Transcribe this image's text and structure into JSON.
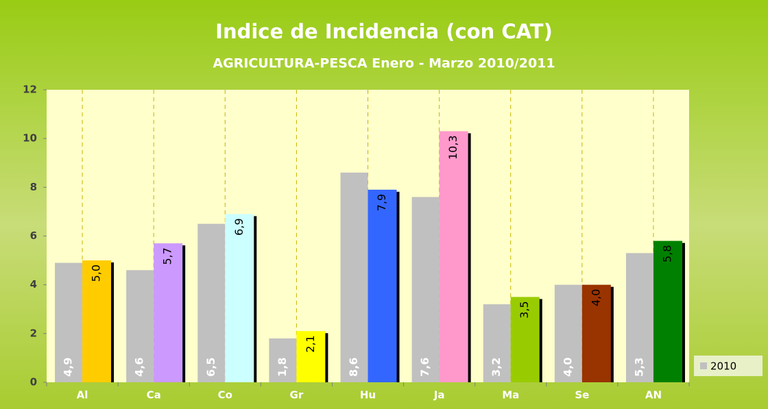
{
  "chart_data": {
    "type": "bar",
    "title": "Indice de Incidencia (con CAT)",
    "subtitle": "AGRICULTURA-PESCA Enero - Marzo 2010/2011",
    "categories": [
      "Al",
      "Ca",
      "Co",
      "Gr",
      "Hu",
      "Ja",
      "Ma",
      "Se",
      "AN"
    ],
    "series": [
      {
        "name": "2010",
        "color": "#c0c0c0",
        "values": [
          4.9,
          4.6,
          6.5,
          1.8,
          8.6,
          7.6,
          3.2,
          4.0,
          5.3
        ],
        "value_labels": [
          "4,9",
          "4,6",
          "6,5",
          "1,8",
          "8,6",
          "7,6",
          "3,2",
          "4,0",
          "5,3"
        ]
      },
      {
        "colors": [
          "#ffcc00",
          "#cc99ff",
          "#ccffff",
          "#ffff00",
          "#3366ff",
          "#ff99cc",
          "#99cc00",
          "#993300",
          "#008000"
        ],
        "values": [
          5.0,
          5.7,
          6.9,
          2.1,
          7.9,
          10.3,
          3.5,
          4.0,
          5.8
        ],
        "value_labels": [
          "5,0",
          "5,7",
          "6,9",
          "2,1",
          "7,9",
          "10,3",
          "3,5",
          "4,0",
          "5,8"
        ]
      }
    ],
    "ylim": [
      0,
      12
    ],
    "yticks": [
      0,
      2,
      4,
      6,
      8,
      10,
      12
    ],
    "grid": "vertical",
    "legend": "right"
  }
}
